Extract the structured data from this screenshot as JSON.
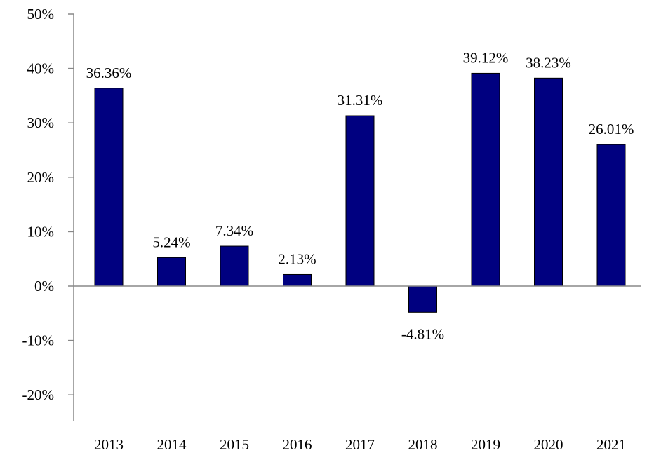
{
  "chart_data": {
    "type": "bar",
    "categories": [
      "2013",
      "2014",
      "2015",
      "2016",
      "2017",
      "2018",
      "2019",
      "2020",
      "2021"
    ],
    "values": [
      36.36,
      5.24,
      7.34,
      2.13,
      31.31,
      -4.81,
      39.12,
      38.23,
      26.01
    ],
    "value_labels": [
      "36.36%",
      "5.24%",
      "7.34%",
      "2.13%",
      "31.31%",
      "-4.81%",
      "39.12%",
      "38.23%",
      "26.01%"
    ],
    "y_ticks": [
      50,
      40,
      30,
      20,
      10,
      0,
      -10,
      -20
    ],
    "y_tick_labels": [
      "50%",
      "40%",
      "30%",
      "20%",
      "10%",
      "0%",
      "-10%",
      "-20%"
    ],
    "ylim": [
      -25,
      50
    ],
    "grid": false,
    "legend": "none",
    "bar_color": "#000080",
    "bar_stroke": "#000000",
    "axis_color": "#888888"
  }
}
